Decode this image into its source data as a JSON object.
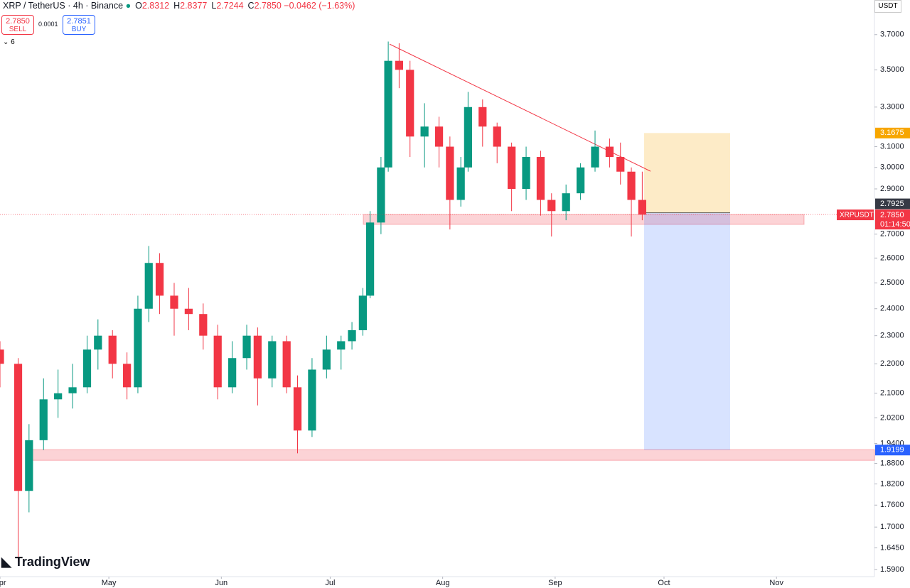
{
  "header": {
    "symbol": "XRP / TetherUS · 4h · Binance",
    "ohlc": [
      {
        "label": "O",
        "value": "2.8312"
      },
      {
        "label": "H",
        "value": "2.8377"
      },
      {
        "label": "L",
        "value": "2.7244"
      },
      {
        "label": "C",
        "value": "2.7850"
      }
    ],
    "change": "−0.0462 (−1.63%)"
  },
  "trade": {
    "sell_price": "2.7850",
    "sell": "SELL",
    "spread": "0.0001",
    "buy_price": "2.7851",
    "buy": "BUY",
    "indicators": "6"
  },
  "currency": "USDT",
  "brand": "TradingView",
  "symbol_tag": "XRPUSDT",
  "countdown": "01:14:50",
  "chart_data": {
    "type": "candlestick",
    "up_color": "#089981",
    "down_color": "#f23645",
    "log_scale": true,
    "grid": false,
    "x": [
      0,
      5,
      8,
      12,
      16,
      20,
      24,
      27,
      31,
      35,
      38,
      41,
      44,
      48,
      52,
      56,
      60,
      64,
      68,
      71,
      75,
      79,
      82,
      86,
      90,
      94,
      97,
      100,
      102,
      105,
      107,
      110,
      113,
      117,
      121,
      124,
      127,
      129,
      133,
      137,
      141,
      145,
      149,
      152,
      156,
      160,
      164,
      168,
      171,
      174,
      177
    ],
    "open": [
      2.25,
      2.2,
      1.8,
      1.95,
      2.08,
      2.1,
      2.12,
      2.25,
      2.3,
      2.2,
      2.12,
      2.4,
      2.58,
      2.45,
      2.4,
      2.38,
      2.3,
      2.12,
      2.22,
      2.3,
      2.15,
      2.28,
      2.12,
      1.98,
      2.18,
      2.25,
      2.28,
      2.32,
      2.45,
      2.75,
      3.0,
      3.55,
      3.5,
      3.15,
      3.2,
      3.1,
      2.85,
      3.0,
      3.3,
      3.2,
      3.1,
      2.9,
      3.05,
      2.85,
      2.8,
      2.88,
      3.0,
      3.1,
      3.05,
      2.98,
      2.85
    ],
    "high": [
      2.28,
      2.22,
      2.0,
      2.15,
      2.18,
      2.2,
      2.3,
      2.36,
      2.32,
      2.24,
      2.45,
      2.65,
      2.62,
      2.5,
      2.48,
      2.42,
      2.34,
      2.28,
      2.34,
      2.33,
      2.3,
      2.3,
      2.16,
      2.22,
      2.3,
      2.3,
      2.35,
      2.48,
      2.8,
      3.05,
      3.66,
      3.65,
      3.55,
      3.32,
      3.25,
      3.15,
      3.05,
      3.38,
      3.34,
      3.22,
      3.12,
      3.1,
      3.08,
      2.88,
      2.92,
      3.02,
      3.18,
      3.14,
      3.12,
      3.0,
      2.98
    ],
    "low": [
      2.12,
      1.61,
      1.74,
      1.92,
      2.02,
      2.05,
      2.1,
      2.18,
      2.15,
      2.08,
      2.1,
      2.35,
      2.38,
      2.3,
      2.32,
      2.25,
      2.08,
      2.1,
      2.18,
      2.06,
      2.12,
      2.1,
      1.91,
      1.96,
      2.15,
      2.18,
      2.25,
      2.3,
      2.44,
      2.7,
      2.98,
      3.4,
      3.05,
      3.0,
      3.0,
      2.72,
      2.82,
      2.98,
      3.1,
      3.02,
      2.8,
      2.85,
      2.78,
      2.69,
      2.76,
      2.85,
      2.98,
      3.0,
      2.92,
      2.69,
      2.76
    ],
    "close": [
      2.2,
      1.8,
      1.95,
      2.08,
      2.1,
      2.12,
      2.25,
      2.3,
      2.2,
      2.12,
      2.4,
      2.58,
      2.45,
      2.4,
      2.38,
      2.3,
      2.12,
      2.22,
      2.3,
      2.15,
      2.28,
      2.12,
      1.98,
      2.18,
      2.25,
      2.28,
      2.32,
      2.45,
      2.75,
      3.0,
      3.55,
      3.5,
      3.15,
      3.2,
      3.1,
      2.85,
      3.0,
      3.3,
      3.2,
      3.1,
      2.9,
      3.05,
      2.85,
      2.8,
      2.88,
      3.0,
      3.1,
      3.05,
      2.98,
      2.85,
      2.785
    ],
    "last_price_label": "2.7850",
    "xlim": [
      0,
      241
    ],
    "xticks": [
      {
        "value": 0,
        "label": "Apr"
      },
      {
        "value": 30,
        "label": "May"
      },
      {
        "value": 61,
        "label": "Jun"
      },
      {
        "value": 91,
        "label": "Jul"
      },
      {
        "value": 122,
        "label": "Aug"
      },
      {
        "value": 153,
        "label": "Sep"
      },
      {
        "value": 183,
        "label": "Oct"
      },
      {
        "value": 214,
        "label": "Nov"
      }
    ],
    "ylim": [
      1.572,
      3.908
    ],
    "yticks": [
      {
        "value": 3.7,
        "label": "3.7000"
      },
      {
        "value": 3.5,
        "label": "3.5000"
      },
      {
        "value": 3.3,
        "label": "3.3000"
      },
      {
        "value": 3.1,
        "label": "3.1000"
      },
      {
        "value": 3.0,
        "label": "3.0000"
      },
      {
        "value": 2.9,
        "label": "2.9000"
      },
      {
        "value": 2.7,
        "label": "2.7000"
      },
      {
        "value": 2.6,
        "label": "2.6000"
      },
      {
        "value": 2.5,
        "label": "2.5000"
      },
      {
        "value": 2.4,
        "label": "2.4000"
      },
      {
        "value": 2.3,
        "label": "2.3000"
      },
      {
        "value": 2.2,
        "label": "2.2000"
      },
      {
        "value": 2.1,
        "label": "2.1000"
      },
      {
        "value": 2.02,
        "label": "2.0200"
      },
      {
        "value": 1.94,
        "label": "1.9400"
      },
      {
        "value": 1.88,
        "label": "1.8800"
      },
      {
        "value": 1.82,
        "label": "1.8200"
      },
      {
        "value": 1.76,
        "label": "1.7600"
      },
      {
        "value": 1.7,
        "label": "1.7000"
      },
      {
        "value": 1.645,
        "label": "1.6450"
      },
      {
        "value": 1.59,
        "label": "1.5900"
      }
    ],
    "position": {
      "entry": {
        "value": 2.7925,
        "label": "2.7925"
      },
      "stop": {
        "value": 3.1675,
        "label": "3.1675"
      },
      "target": {
        "value": 1.9199,
        "label": "1.9199"
      }
    },
    "zones": [
      [
        2.742,
        2.785
      ],
      [
        1.889,
        1.921
      ]
    ],
    "trendline": [
      3.645,
      2.982
    ]
  }
}
